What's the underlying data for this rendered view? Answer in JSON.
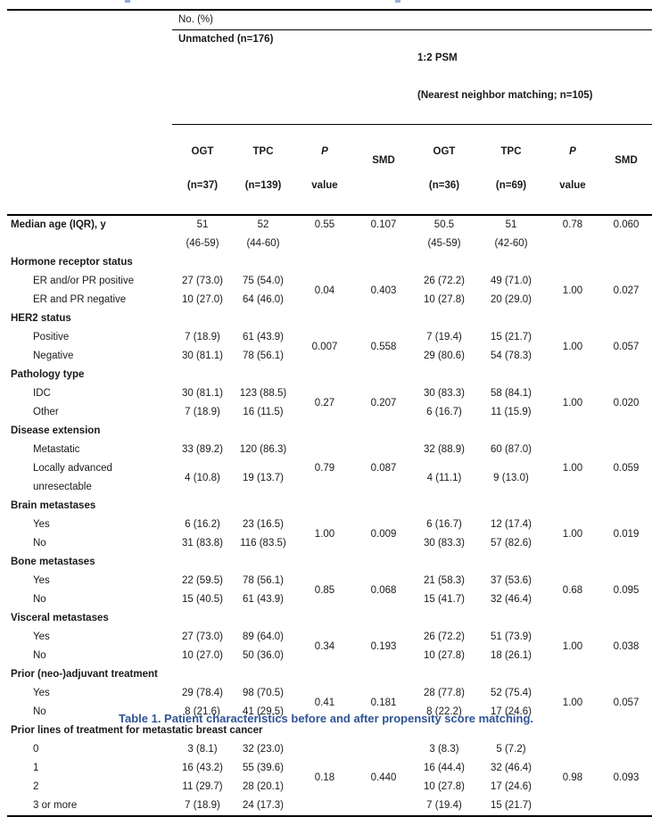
{
  "page": {
    "caption": "Table 1. Patient characteristics before and after propensity score matching.",
    "caption_color": "#2F5496",
    "rule_color": "#000000"
  },
  "table": {
    "header": {
      "no_pct": "No. (%)",
      "group_unmatched": "Unmatched (n=176)",
      "group_psm_line1": "1:2 PSM",
      "group_psm_line2": "(Nearest neighbor matching; n=105)",
      "columns": [
        {
          "line1": "OGT",
          "line2": "(n=37)"
        },
        {
          "line1": "TPC",
          "line2": "(n=139)"
        },
        {
          "line1": "P",
          "line2": "value"
        },
        {
          "line1": "SMD",
          "line2": ""
        },
        {
          "line1": "OGT",
          "line2": "(n=36)"
        },
        {
          "line1": "TPC",
          "line2": "(n=69)"
        },
        {
          "line1": "P",
          "line2": "value"
        },
        {
          "line1": "SMD",
          "line2": ""
        }
      ]
    },
    "sections": [
      {
        "rows": [
          {
            "label": "Median age (IQR), y",
            "bold": true,
            "ogt1": "51\n(46-59)",
            "tpc1": "52\n(44-60)",
            "ogt2": "50.5\n(45-59)",
            "tpc2": "51\n(42-60)"
          }
        ],
        "p1": "0.55",
        "smd1": "0.107",
        "p2": "0.78",
        "smd2": "0.060",
        "stats_top": true
      },
      {
        "header": "Hormone receptor status",
        "rows": [
          {
            "label": "ER and/or PR positive",
            "ogt1": "27 (73.0)",
            "tpc1": "75 (54.0)",
            "ogt2": "26 (72.2)",
            "tpc2": "49 (71.0)"
          },
          {
            "label": "ER and PR negative",
            "ogt1": "10 (27.0)",
            "tpc1": "64 (46.0)",
            "ogt2": "10 (27.8)",
            "tpc2": "20 (29.0)"
          }
        ],
        "p1": "0.04",
        "smd1": "0.403",
        "p2": "1.00",
        "smd2": "0.027"
      },
      {
        "header": "HER2 status",
        "rows": [
          {
            "label": "Positive",
            "ogt1": "7 (18.9)",
            "tpc1": "61 (43.9)",
            "ogt2": "7 (19.4)",
            "tpc2": "15 (21.7)"
          },
          {
            "label": "Negative",
            "ogt1": "30 (81.1)",
            "tpc1": "78 (56.1)",
            "ogt2": "29 (80.6)",
            "tpc2": "54 (78.3)"
          }
        ],
        "p1": "0.007",
        "smd1": "0.558",
        "p2": "1.00",
        "smd2": "0.057"
      },
      {
        "header": "Pathology type",
        "rows": [
          {
            "label": "IDC",
            "ogt1": "30 (81.1)",
            "tpc1": "123 (88.5)",
            "ogt2": "30 (83.3)",
            "tpc2": "58 (84.1)"
          },
          {
            "label": "Other",
            "ogt1": "7 (18.9)",
            "tpc1": "16 (11.5)",
            "ogt2": "6 (16.7)",
            "tpc2": "11 (15.9)"
          }
        ],
        "p1": "0.27",
        "smd1": "0.207",
        "p2": "1.00",
        "smd2": "0.020"
      },
      {
        "header": "Disease extension",
        "rows": [
          {
            "label": "Metastatic",
            "ogt1": "33 (89.2)",
            "tpc1": "120 (86.3)",
            "ogt2": "32 (88.9)",
            "tpc2": "60 (87.0)"
          },
          {
            "label": "Locally advanced\nunresectable",
            "ogt1": "4 (10.8)",
            "tpc1": "19 (13.7)",
            "ogt2": "4 (11.1)",
            "tpc2": "9 (13.0)"
          }
        ],
        "p1": "0.79",
        "smd1": "0.087",
        "p2": "1.00",
        "smd2": "0.059"
      },
      {
        "header": "Brain metastases",
        "rows": [
          {
            "label": "Yes",
            "ogt1": "6 (16.2)",
            "tpc1": "23 (16.5)",
            "ogt2": "6 (16.7)",
            "tpc2": "12 (17.4)"
          },
          {
            "label": "No",
            "ogt1": "31 (83.8)",
            "tpc1": "116 (83.5)",
            "ogt2": "30 (83.3)",
            "tpc2": "57 (82.6)"
          }
        ],
        "p1": "1.00",
        "smd1": "0.009",
        "p2": "1.00",
        "smd2": "0.019"
      },
      {
        "header": "Bone metastases",
        "rows": [
          {
            "label": "Yes",
            "ogt1": "22 (59.5)",
            "tpc1": "78 (56.1)",
            "ogt2": "21 (58.3)",
            "tpc2": "37 (53.6)"
          },
          {
            "label": "No",
            "ogt1": "15 (40.5)",
            "tpc1": "61 (43.9)",
            "ogt2": "15 (41.7)",
            "tpc2": "32 (46.4)"
          }
        ],
        "p1": "0.85",
        "smd1": "0.068",
        "p2": "0.68",
        "smd2": "0.095"
      },
      {
        "header": "Visceral metastases",
        "rows": [
          {
            "label": "Yes",
            "ogt1": "27 (73.0)",
            "tpc1": "89 (64.0)",
            "ogt2": "26 (72.2)",
            "tpc2": "51 (73.9)"
          },
          {
            "label": "No",
            "ogt1": "10 (27.0)",
            "tpc1": "50 (36.0)",
            "ogt2": "10 (27.8)",
            "tpc2": "18 (26.1)"
          }
        ],
        "p1": "0.34",
        "smd1": "0.193",
        "p2": "1.00",
        "smd2": "0.038"
      },
      {
        "header": "Prior (neo-)adjuvant treatment",
        "rows": [
          {
            "label": "Yes",
            "ogt1": "29 (78.4)",
            "tpc1": "98 (70.5)",
            "ogt2": "28 (77.8)",
            "tpc2": "52 (75.4)"
          },
          {
            "label": "No",
            "ogt1": "8 (21.6)",
            "tpc1": "41 (29.5)",
            "ogt2": "8 (22.2)",
            "tpc2": "17 (24.6)"
          }
        ],
        "p1": "0.41",
        "smd1": "0.181",
        "p2": "1.00",
        "smd2": "0.057"
      },
      {
        "header": "Prior lines of treatment for metastatic breast cancer",
        "rows": [
          {
            "label": "0",
            "ogt1": "3 (8.1)",
            "tpc1": "32 (23.0)",
            "ogt2": "3 (8.3)",
            "tpc2": "5 (7.2)"
          },
          {
            "label": "1",
            "ogt1": "16 (43.2)",
            "tpc1": "55 (39.6)",
            "ogt2": "16 (44.4)",
            "tpc2": "32 (46.4)"
          },
          {
            "label": "2",
            "ogt1": "11 (29.7)",
            "tpc1": "28 (20.1)",
            "ogt2": "10 (27.8)",
            "tpc2": "17 (24.6)"
          },
          {
            "label": "3 or more",
            "ogt1": "7 (18.9)",
            "tpc1": "24 (17.3)",
            "ogt2": "7 (19.4)",
            "tpc2": "15 (21.7)"
          }
        ],
        "p1": "0.18",
        "smd1": "0.440",
        "p2": "0.98",
        "smd2": "0.093"
      }
    ]
  }
}
